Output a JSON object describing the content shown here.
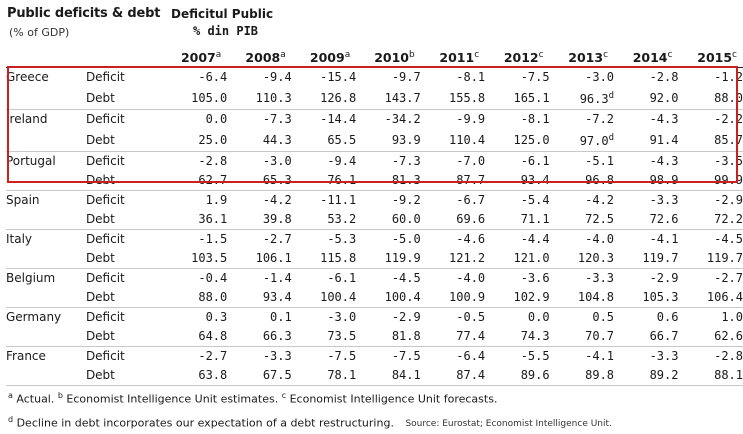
{
  "header": {
    "title": "Public deficits & debt",
    "subtitle": "(% of GDP)",
    "annotation_line1": "Deficitul Public",
    "annotation_line2": "% din PIB"
  },
  "columns": [
    {
      "year": "2007",
      "mark": "a"
    },
    {
      "year": "2008",
      "mark": "a"
    },
    {
      "year": "2009",
      "mark": "a"
    },
    {
      "year": "2010",
      "mark": "b"
    },
    {
      "year": "2011",
      "mark": "c"
    },
    {
      "year": "2012",
      "mark": "c"
    },
    {
      "year": "2013",
      "mark": "c"
    },
    {
      "year": "2014",
      "mark": "c"
    },
    {
      "year": "2015",
      "mark": "c"
    }
  ],
  "highlight": {
    "color": "#cc1f1f",
    "countries": [
      "Greece",
      "Ireland",
      "Portugal"
    ]
  },
  "countries": [
    {
      "name": "Greece",
      "rows": [
        {
          "metric": "Deficit",
          "values": [
            "-6.4",
            "-9.4",
            "-15.4",
            "-9.7",
            "-8.1",
            "-7.5",
            "-3.0",
            "-2.8",
            "-1.2"
          ],
          "marks": [
            "",
            "",
            "",
            "",
            "",
            "",
            "",
            "",
            ""
          ]
        },
        {
          "metric": "Debt",
          "values": [
            "105.0",
            "110.3",
            "126.8",
            "143.7",
            "155.8",
            "165.1",
            "96.3",
            "92.0",
            "88.0"
          ],
          "marks": [
            "",
            "",
            "",
            "",
            "",
            "",
            "d",
            "",
            ""
          ]
        }
      ]
    },
    {
      "name": "Ireland",
      "rows": [
        {
          "metric": "Deficit",
          "values": [
            "0.0",
            "-7.3",
            "-14.4",
            "-34.2",
            "-9.9",
            "-8.1",
            "-7.2",
            "-4.3",
            "-2.2"
          ],
          "marks": [
            "",
            "",
            "",
            "",
            "",
            "",
            "",
            "",
            ""
          ]
        },
        {
          "metric": "Debt",
          "values": [
            "25.0",
            "44.3",
            "65.5",
            "93.9",
            "110.4",
            "125.0",
            "97.0",
            "91.4",
            "85.7"
          ],
          "marks": [
            "",
            "",
            "",
            "",
            "",
            "",
            "d",
            "",
            ""
          ]
        }
      ]
    },
    {
      "name": "Portugal",
      "rows": [
        {
          "metric": "Deficit",
          "values": [
            "-2.8",
            "-3.0",
            "-9.4",
            "-7.3",
            "-7.0",
            "-6.1",
            "-5.1",
            "-4.3",
            "-3.5"
          ],
          "marks": [
            "",
            "",
            "",
            "",
            "",
            "",
            "",
            "",
            ""
          ]
        },
        {
          "metric": "Debt",
          "values": [
            "62.7",
            "65.3",
            "76.1",
            "81.3",
            "87.7",
            "93.4",
            "96.8",
            "98.9",
            "99.9"
          ],
          "marks": [
            "",
            "",
            "",
            "",
            "",
            "",
            "",
            "",
            ""
          ]
        }
      ]
    },
    {
      "name": "Spain",
      "rows": [
        {
          "metric": "Deficit",
          "values": [
            "1.9",
            "-4.2",
            "-11.1",
            "-9.2",
            "-6.7",
            "-5.4",
            "-4.2",
            "-3.3",
            "-2.9"
          ],
          "marks": [
            "",
            "",
            "",
            "",
            "",
            "",
            "",
            "",
            ""
          ]
        },
        {
          "metric": "Debt",
          "values": [
            "36.1",
            "39.8",
            "53.2",
            "60.0",
            "69.6",
            "71.1",
            "72.5",
            "72.6",
            "72.2"
          ],
          "marks": [
            "",
            "",
            "",
            "",
            "",
            "",
            "",
            "",
            ""
          ]
        }
      ]
    },
    {
      "name": "Italy",
      "rows": [
        {
          "metric": "Deficit",
          "values": [
            "-1.5",
            "-2.7",
            "-5.3",
            "-5.0",
            "-4.6",
            "-4.4",
            "-4.0",
            "-4.1",
            "-4.5"
          ],
          "marks": [
            "",
            "",
            "",
            "",
            "",
            "",
            "",
            "",
            ""
          ]
        },
        {
          "metric": "Debt",
          "values": [
            "103.5",
            "106.1",
            "115.8",
            "119.9",
            "121.2",
            "121.0",
            "120.3",
            "119.7",
            "119.7"
          ],
          "marks": [
            "",
            "",
            "",
            "",
            "",
            "",
            "",
            "",
            ""
          ]
        }
      ]
    },
    {
      "name": "Belgium",
      "rows": [
        {
          "metric": "Deficit",
          "values": [
            "-0.4",
            "-1.4",
            "-6.1",
            "-4.5",
            "-4.0",
            "-3.6",
            "-3.3",
            "-2.9",
            "-2.7"
          ],
          "marks": [
            "",
            "",
            "",
            "",
            "",
            "",
            "",
            "",
            ""
          ]
        },
        {
          "metric": "Debt",
          "values": [
            "88.0",
            "93.4",
            "100.4",
            "100.4",
            "100.9",
            "102.9",
            "104.8",
            "105.3",
            "106.4"
          ],
          "marks": [
            "",
            "",
            "",
            "",
            "",
            "",
            "",
            "",
            ""
          ]
        }
      ]
    },
    {
      "name": "Germany",
      "rows": [
        {
          "metric": "Deficit",
          "values": [
            "0.3",
            "0.1",
            "-3.0",
            "-2.9",
            "-0.5",
            "0.0",
            "0.5",
            "0.6",
            "1.0"
          ],
          "marks": [
            "",
            "",
            "",
            "",
            "",
            "",
            "",
            "",
            ""
          ]
        },
        {
          "metric": "Debt",
          "values": [
            "64.8",
            "66.3",
            "73.5",
            "81.8",
            "77.4",
            "74.3",
            "70.7",
            "66.7",
            "62.6"
          ],
          "marks": [
            "",
            "",
            "",
            "",
            "",
            "",
            "",
            "",
            ""
          ]
        }
      ]
    },
    {
      "name": "France",
      "rows": [
        {
          "metric": "Deficit",
          "values": [
            "-2.7",
            "-3.3",
            "-7.5",
            "-7.5",
            "-6.4",
            "-5.5",
            "-4.1",
            "-3.3",
            "-2.8"
          ],
          "marks": [
            "",
            "",
            "",
            "",
            "",
            "",
            "",
            "",
            ""
          ]
        },
        {
          "metric": "Debt",
          "values": [
            "63.8",
            "67.5",
            "78.1",
            "84.1",
            "87.4",
            "89.6",
            "89.8",
            "89.2",
            "88.1"
          ],
          "marks": [
            "",
            "",
            "",
            "",
            "",
            "",
            "",
            "",
            ""
          ]
        }
      ]
    }
  ],
  "footnotes": {
    "line1": [
      {
        "mark": "a",
        "text": " Actual. "
      },
      {
        "mark": "b",
        "text": " Economist Intelligence Unit estimates. "
      },
      {
        "mark": "c",
        "text": " Economist Intelligence Unit forecasts."
      }
    ],
    "line2": {
      "mark": "d",
      "text": " Decline in debt incorporates our expectation of a debt restructuring."
    },
    "source": "Source: Eurostat; Economist Intelligence Unit."
  }
}
